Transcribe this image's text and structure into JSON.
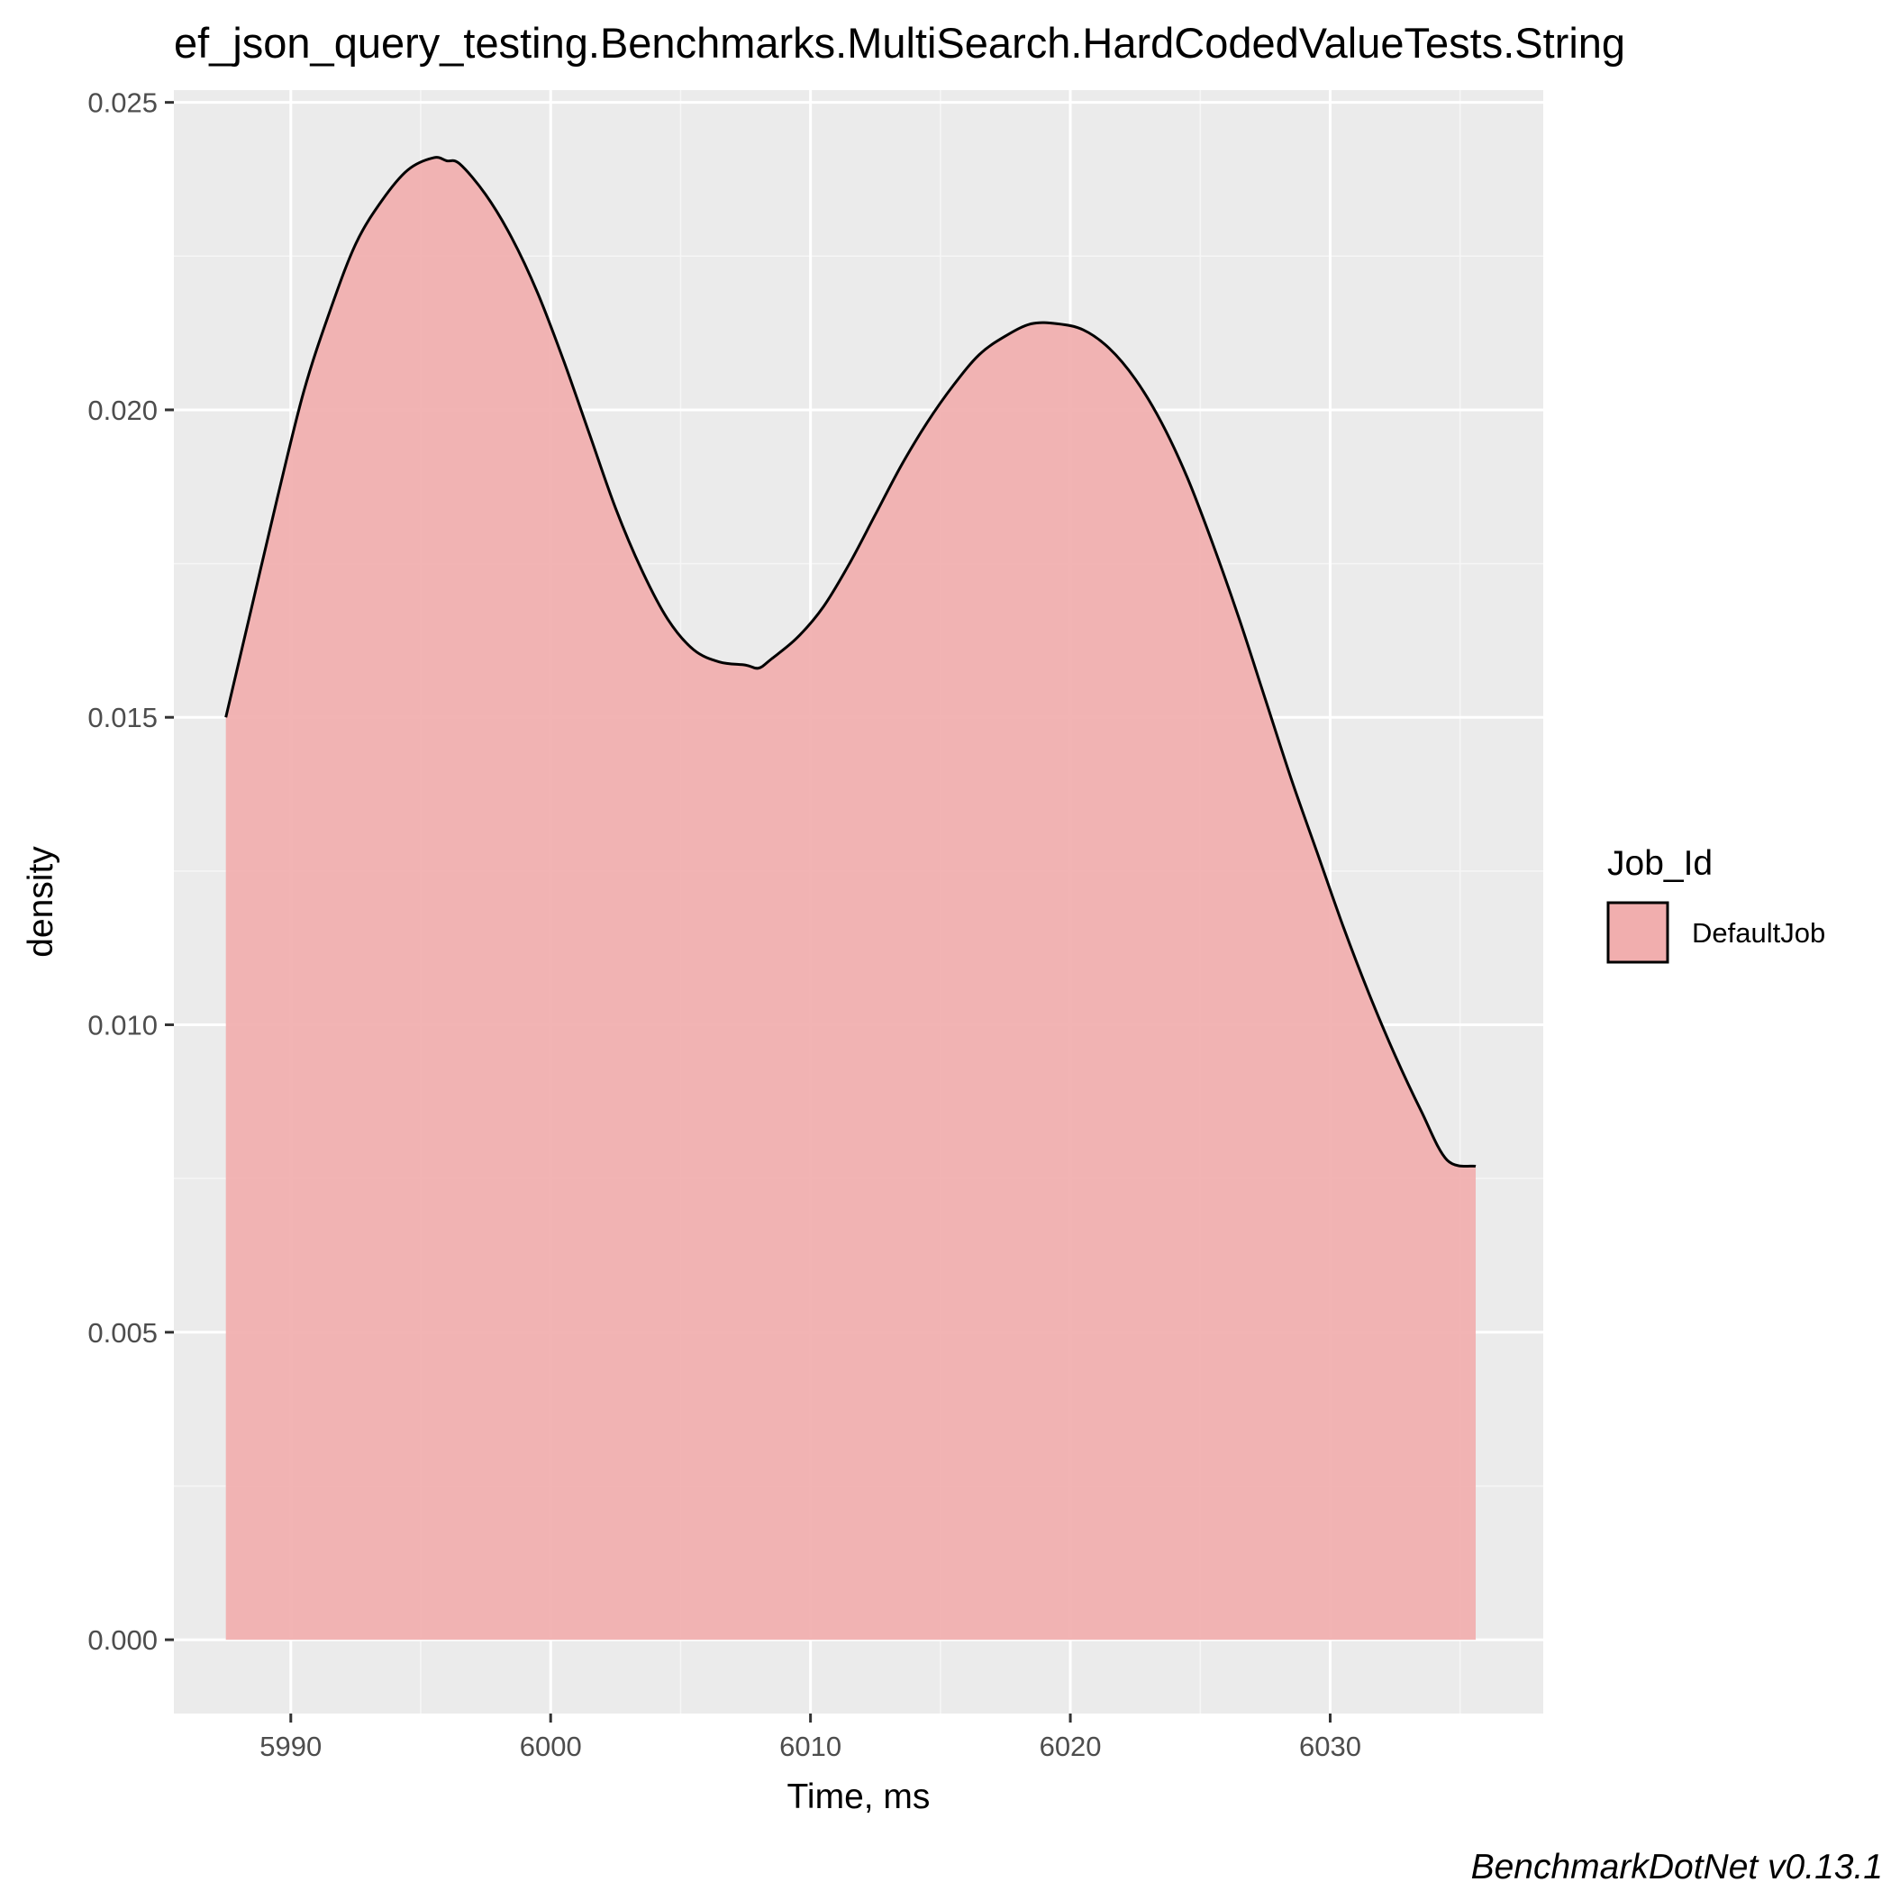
{
  "chart_data": {
    "type": "area",
    "subtype": "density",
    "title": "ef_json_query_testing.Benchmarks.MultiSearch.HardCodedValueTests.String",
    "xlabel": "Time, ms",
    "ylabel": "density",
    "caption": "BenchmarkDotNet v0.13.1",
    "xlim": [
      5985.5,
      6038.2
    ],
    "ylim": [
      -0.0012,
      0.0252
    ],
    "x_ticks": [
      5990,
      6000,
      6010,
      6020,
      6030
    ],
    "x_tick_labels": [
      "5990",
      "6000",
      "6010",
      "6020",
      "6030"
    ],
    "y_ticks": [
      0.0,
      0.005,
      0.01,
      0.015,
      0.02,
      0.025
    ],
    "y_tick_labels": [
      "0.000",
      "0.005",
      "0.010",
      "0.015",
      "0.020",
      "0.025"
    ],
    "grid": true,
    "legend": {
      "title": "Job_Id",
      "position": "right",
      "entries": [
        "DefaultJob"
      ]
    },
    "series": [
      {
        "name": "DefaultJob",
        "fill_color": "#f1aeae",
        "line_color": "#000000",
        "x": [
          5987.5,
          5988.5,
          5989.5,
          5990.5,
          5991.5,
          5992.5,
          5993.5,
          5994.5,
          5995.5,
          5996.0,
          5996.5,
          5997.5,
          5998.5,
          5999.5,
          6000.5,
          6001.5,
          6002.5,
          6003.5,
          6004.5,
          6005.5,
          6006.5,
          6007.5,
          6008.0,
          6008.5,
          6009.5,
          6010.5,
          6011.5,
          6012.5,
          6013.5,
          6014.5,
          6015.5,
          6016.5,
          6017.5,
          6018.5,
          6019.5,
          6020.5,
          6021.5,
          6022.5,
          6023.5,
          6024.5,
          6025.5,
          6026.5,
          6027.5,
          6028.5,
          6029.5,
          6030.5,
          6031.5,
          6032.5,
          6033.5,
          6034.5,
          6035.6
        ],
        "y": [
          0.015,
          0.0168,
          0.0186,
          0.0203,
          0.0216,
          0.0227,
          0.0234,
          0.0239,
          0.0241,
          0.02405,
          0.024,
          0.0235,
          0.0228,
          0.0219,
          0.0208,
          0.0196,
          0.0184,
          0.0174,
          0.0166,
          0.0161,
          0.0159,
          0.01585,
          0.0158,
          0.01595,
          0.0163,
          0.0168,
          0.0175,
          0.0183,
          0.0191,
          0.0198,
          0.0204,
          0.0209,
          0.0212,
          0.0214,
          0.0214,
          0.0213,
          0.021,
          0.0205,
          0.0198,
          0.0189,
          0.0178,
          0.0166,
          0.0153,
          0.014,
          0.0128,
          0.0116,
          0.0105,
          0.0095,
          0.0086,
          0.0078,
          0.0077
        ]
      }
    ]
  }
}
